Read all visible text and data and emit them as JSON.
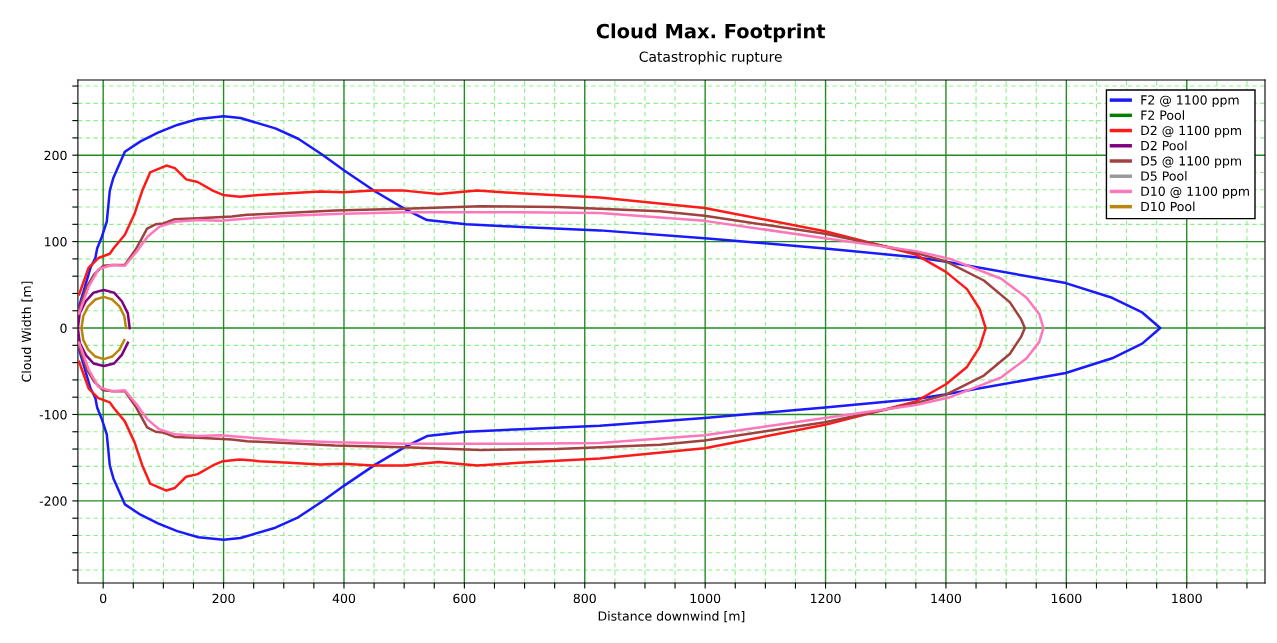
{
  "chart_data": {
    "type": "line",
    "title": "Cloud Max. Footprint",
    "subtitle": "Catastrophic rupture",
    "xlabel": "Distance downwind [m]",
    "ylabel": "Cloud Width [m]",
    "xlim": [
      -42,
      1930
    ],
    "ylim": [
      -295,
      287
    ],
    "xticks": [
      0,
      {
        "value": 50,
        "label": null
      },
      {
        "value": 100,
        "label": null
      },
      {
        "value": 150,
        "label": null
      },
      200,
      {
        "value": 250,
        "label": null
      },
      {
        "value": 300,
        "label": null
      },
      {
        "value": 350,
        "label": null
      },
      400,
      {
        "value": 450,
        "label": null
      },
      {
        "value": 500,
        "label": null
      },
      {
        "value": 550,
        "label": null
      },
      600,
      {
        "value": 650,
        "label": null
      },
      {
        "value": 700,
        "label": null
      },
      {
        "value": 750,
        "label": null
      },
      800,
      {
        "value": 850,
        "label": null
      },
      {
        "value": 900,
        "label": null
      },
      {
        "value": 950,
        "label": null
      },
      1000,
      {
        "value": 1050,
        "label": null
      },
      {
        "value": 1100,
        "label": null
      },
      {
        "value": 1150,
        "label": null
      },
      1200,
      {
        "value": 1250,
        "label": null
      },
      {
        "value": 1300,
        "label": null
      },
      {
        "value": 1350,
        "label": null
      },
      1400,
      {
        "value": 1450,
        "label": null
      },
      {
        "value": 1500,
        "label": null
      },
      {
        "value": 1550,
        "label": null
      },
      1600,
      {
        "value": 1650,
        "label": null
      },
      {
        "value": 1700,
        "label": null
      },
      {
        "value": 1750,
        "label": null
      },
      1800,
      {
        "value": 1850,
        "label": null
      },
      {
        "value": 1900,
        "label": null
      }
    ],
    "yticks": [
      {
        "value": -280,
        "label": null
      },
      {
        "value": -260,
        "label": null
      },
      {
        "value": -240,
        "label": null
      },
      {
        "value": -220,
        "label": null
      },
      -200,
      {
        "value": -180,
        "label": null
      },
      {
        "value": -160,
        "label": null
      },
      {
        "value": -140,
        "label": null
      },
      {
        "value": -120,
        "label": null
      },
      -100,
      {
        "value": -80,
        "label": null
      },
      {
        "value": -60,
        "label": null
      },
      {
        "value": -40,
        "label": null
      },
      {
        "value": -20,
        "label": null
      },
      0,
      {
        "value": 20,
        "label": null
      },
      {
        "value": 40,
        "label": null
      },
      {
        "value": 60,
        "label": null
      },
      {
        "value": 80,
        "label": null
      },
      100,
      {
        "value": 120,
        "label": null
      },
      {
        "value": 140,
        "label": null
      },
      {
        "value": 160,
        "label": null
      },
      {
        "value": 180,
        "label": null
      },
      200,
      {
        "value": 220,
        "label": null
      },
      {
        "value": 240,
        "label": null
      },
      {
        "value": 260,
        "label": null
      },
      {
        "value": 280,
        "label": null
      }
    ],
    "grid": true,
    "legend": "top right",
    "series": [
      {
        "name": "F2 @ 1100 ppm",
        "color": "#1a1aff",
        "x": [
          -40,
          -21,
          -13,
          -10,
          -2,
          6,
          11,
          17,
          36,
          62,
          91,
          123,
          158,
          200,
          228,
          286,
          324,
          363,
          401,
          452,
          503,
          538,
          603,
          694,
          825,
          999,
          1199,
          1350,
          1398,
          1599,
          1676,
          1726,
          1756,
          1726,
          1676,
          1599,
          1398,
          1350,
          1199,
          999,
          825,
          694,
          603,
          538,
          503,
          452,
          401,
          363,
          324,
          286,
          228,
          200,
          158,
          123,
          91,
          62,
          36,
          17,
          11,
          6,
          -2,
          -10,
          -13,
          -21,
          -40
        ],
        "values": [
          25,
          70,
          81,
          92,
          106,
          123,
          159,
          174,
          204,
          216,
          226,
          235,
          242,
          245,
          243,
          231,
          219,
          201,
          182,
          158,
          137,
          125,
          120,
          117,
          113,
          104,
          92,
          82,
          77,
          52,
          35,
          18,
          0,
          -18,
          -35,
          -52,
          -77,
          -82,
          -92,
          -104,
          -113,
          -117,
          -120,
          -125,
          -137,
          -158,
          -182,
          -201,
          -219,
          -231,
          -243,
          -245,
          -242,
          -235,
          -226,
          -216,
          -204,
          -174,
          -159,
          -123,
          -106,
          -92,
          -81,
          -70,
          -25
        ]
      },
      {
        "name": "F2 Pool",
        "type": "line",
        "color": "#008000"
      },
      {
        "name": "D2 @ 1100 ppm",
        "color": "#ff1a1a",
        "x": [
          -40,
          -24,
          -8,
          11,
          17,
          36,
          52,
          65,
          78,
          105,
          119,
          138,
          157,
          182,
          199,
          227,
          259,
          309,
          360,
          398,
          449,
          500,
          557,
          621,
          691,
          825,
          999,
          1199,
          1350,
          1400,
          1435,
          1456,
          1466,
          1456,
          1435,
          1400,
          1350,
          1199,
          999,
          825,
          691,
          621,
          557,
          500,
          449,
          398,
          360,
          309,
          259,
          227,
          199,
          182,
          157,
          138,
          119,
          105,
          78,
          65,
          52,
          36,
          17,
          11,
          -8,
          -24,
          -40
        ],
        "values": [
          39,
          70,
          81,
          86,
          92,
          108,
          132,
          159,
          180,
          188,
          185,
          172,
          169,
          159,
          154,
          152,
          154,
          156,
          158,
          157,
          159,
          159,
          155,
          159,
          156,
          151,
          139,
          112,
          85,
          65,
          45,
          22,
          0,
          -22,
          -45,
          -65,
          -85,
          -112,
          -139,
          -151,
          -156,
          -159,
          -155,
          -159,
          -159,
          -157,
          -158,
          -156,
          -154,
          -152,
          -154,
          -159,
          -169,
          -172,
          -185,
          -188,
          -180,
          -159,
          -132,
          -108,
          -92,
          -86,
          -81,
          -70,
          -39
        ]
      },
      {
        "name": "D2 Pool",
        "type": "line",
        "color": "#800080",
        "x": [
          44,
          41,
          31,
          18,
          1,
          -16,
          -29,
          -39,
          -42,
          -39,
          -29,
          -16,
          1,
          18,
          31,
          41
        ],
        "values": [
          0,
          17,
          31,
          41,
          44,
          41,
          31,
          17,
          0,
          -17,
          -31,
          -41,
          -44,
          -41,
          -31,
          -17
        ]
      },
      {
        "name": "D5 @ 1100 ppm",
        "color": "#a0403f",
        "x": [
          -40,
          -27,
          -15,
          0,
          17,
          36,
          55,
          73,
          87,
          100,
          119,
          157,
          214,
          239,
          303,
          385,
          500,
          627,
          754,
          925,
          999,
          1199,
          1350,
          1400,
          1463,
          1506,
          1525,
          1531,
          1525,
          1506,
          1463,
          1400,
          1350,
          1199,
          999,
          925,
          754,
          627,
          500,
          385,
          303,
          239,
          214,
          157,
          119,
          100,
          87,
          73,
          55,
          36,
          17,
          0,
          -15,
          -27,
          -40
        ],
        "values": [
          22,
          48,
          62,
          72,
          73,
          73,
          92,
          115,
          120,
          121,
          126,
          127,
          129,
          131,
          133,
          136,
          138,
          141,
          140,
          135,
          130,
          109,
          87,
          77,
          55,
          30,
          10,
          0,
          -10,
          -30,
          -55,
          -77,
          -87,
          -109,
          -130,
          -135,
          -140,
          -141,
          -138,
          -136,
          -133,
          -131,
          -129,
          -127,
          -126,
          -121,
          -120,
          -115,
          -92,
          -73,
          -73,
          -72,
          -62,
          -48,
          -22
        ]
      },
      {
        "name": "D5 Pool",
        "type": "line",
        "color": "#999999"
      },
      {
        "name": "D10 @ 1100 ppm",
        "color": "#ff77bb",
        "x": [
          -40,
          -24,
          -8,
          14,
          36,
          55,
          74,
          93,
          119,
          157,
          195,
          246,
          309,
          385,
          500,
          691,
          825,
          999,
          1199,
          1350,
          1407,
          1492,
          1534,
          1555,
          1562,
          1555,
          1534,
          1492,
          1407,
          1350,
          1199,
          999,
          825,
          691,
          500,
          385,
          309,
          246,
          195,
          157,
          119,
          93,
          74,
          55,
          36,
          14,
          -8,
          -24,
          -40
        ],
        "values": [
          17,
          48,
          68,
          73,
          72,
          88,
          106,
          117,
          123,
          125,
          124,
          127,
          130,
          132,
          134,
          134,
          133,
          124,
          104,
          89,
          80,
          57,
          35,
          16,
          0,
          -16,
          -35,
          -57,
          -80,
          -89,
          -104,
          -124,
          -133,
          -134,
          -134,
          -132,
          -130,
          -127,
          -124,
          -125,
          -123,
          -117,
          -106,
          -88,
          -72,
          -73,
          -68,
          -48,
          -17
        ]
      },
      {
        "name": "D10 Pool",
        "type": "line",
        "color": "#b8860b",
        "x": [
          38,
          35,
          27,
          15,
          1,
          -13,
          -25,
          -33,
          -36,
          -33,
          -25,
          -13,
          1,
          15,
          27,
          35
        ],
        "values": [
          0,
          14,
          25,
          33,
          36,
          33,
          25,
          14,
          0,
          -14,
          -25,
          -33,
          -36,
          -33,
          -25,
          -14
        ]
      }
    ]
  }
}
